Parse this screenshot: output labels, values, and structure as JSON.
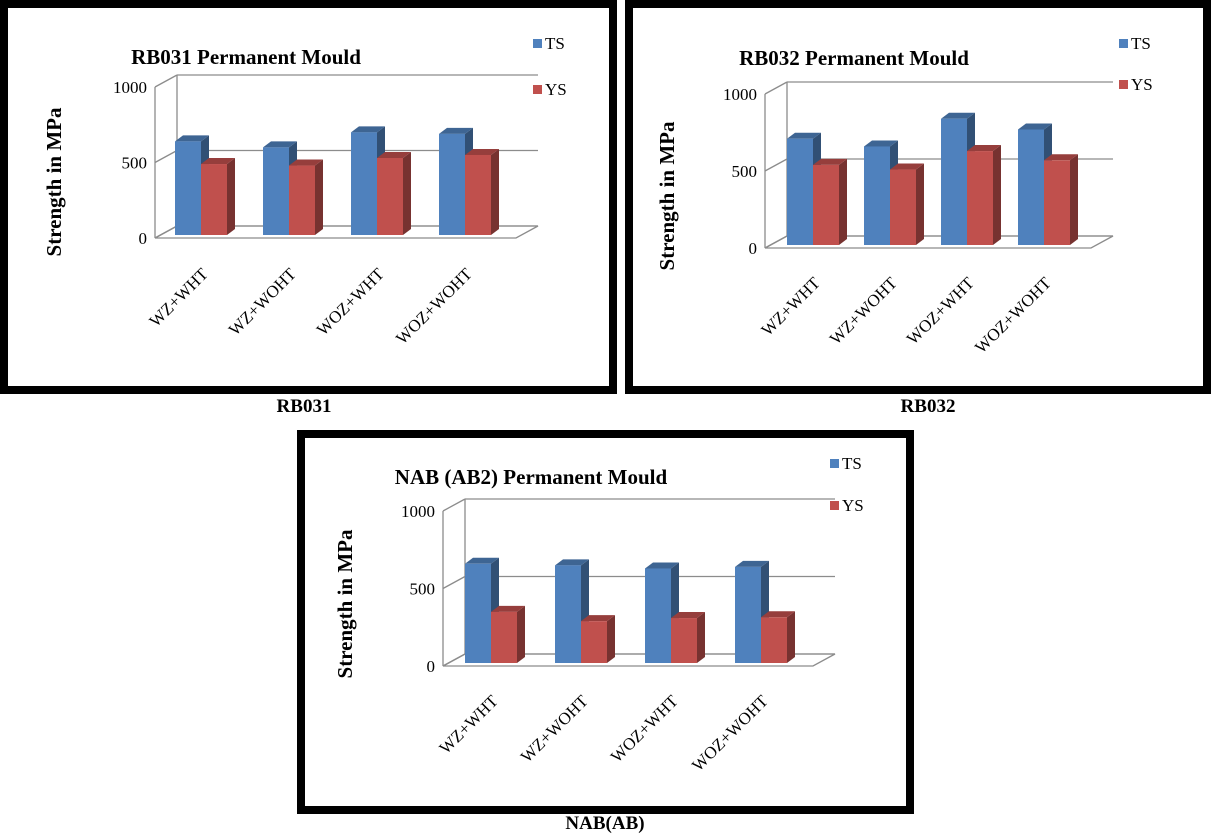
{
  "chart_data": [
    {
      "type": "bar",
      "title": "RB031 Permanent Mould",
      "xlabel": "",
      "ylabel": "Strength in MPa",
      "categories": [
        "WZ+WHT",
        "WZ+WOHT",
        "WOZ+WHT",
        "WOZ+WOHT"
      ],
      "ylim": [
        0,
        1000
      ],
      "yticks": [
        "0",
        "500",
        "1000"
      ],
      "series": [
        {
          "name": "TS",
          "values": [
            620,
            580,
            680,
            670
          ],
          "color": "#4f81bd"
        },
        {
          "name": "YS",
          "values": [
            470,
            460,
            510,
            530
          ],
          "color": "#c0504d"
        }
      ],
      "legend": "top-right",
      "grid": true,
      "style": "3d-clustered-column"
    },
    {
      "type": "bar",
      "title": "RB032 Permanent Mould",
      "xlabel": "",
      "ylabel": "Strength in MPa",
      "categories": [
        "WZ+WHT",
        "WZ+WOHT",
        "WOZ+WHT",
        "WOZ+WOHT"
      ],
      "ylim": [
        0,
        1000
      ],
      "yticks": [
        "0",
        "500",
        "1000"
      ],
      "series": [
        {
          "name": "TS",
          "values": [
            690,
            640,
            820,
            750
          ],
          "color": "#4f81bd"
        },
        {
          "name": "YS",
          "values": [
            520,
            490,
            610,
            550
          ],
          "color": "#c0504d"
        }
      ],
      "legend": "top-right",
      "grid": true,
      "style": "3d-clustered-column"
    },
    {
      "type": "bar",
      "title": "NAB (AB2) Permanent Mould",
      "xlabel": "",
      "ylabel": "Strength in MPa",
      "categories": [
        "WZ+WHT",
        "WZ+WOHT",
        "WOZ+WHT",
        "WOZ+WOHT"
      ],
      "ylim": [
        0,
        1000
      ],
      "yticks": [
        "0",
        "500",
        "1000"
      ],
      "series": [
        {
          "name": "TS",
          "values": [
            640,
            630,
            610,
            620
          ],
          "color": "#4f81bd"
        },
        {
          "name": "YS",
          "values": [
            330,
            270,
            290,
            295
          ],
          "color": "#c0504d"
        }
      ],
      "legend": "top-right",
      "grid": true,
      "style": "3d-clustered-column"
    }
  ],
  "captions": [
    "RB031",
    "RB032",
    "NAB(AB)"
  ]
}
